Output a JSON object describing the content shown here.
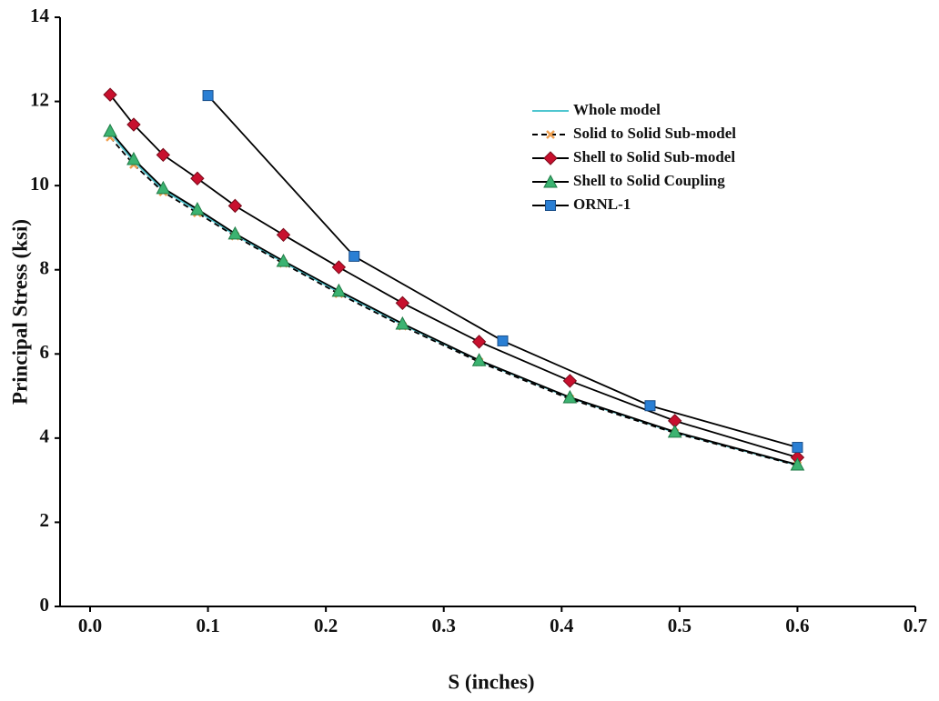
{
  "chart_data": {
    "type": "line",
    "x_label": "S (inches)",
    "y_label": "Principal Stress (ksi)",
    "xlim": [
      0,
      0.7
    ],
    "ylim": [
      0,
      14
    ],
    "xticks": [
      {
        "value": 0,
        "label": "0.0"
      },
      0.1,
      0.2,
      0.3,
      0.4,
      0.5,
      0.6,
      0.7
    ],
    "yticks": [
      0,
      2,
      4,
      6,
      8,
      10,
      12,
      14
    ],
    "legend": "upper right",
    "series": [
      {
        "name": "Whole model",
        "color": "#4fc6d0",
        "marker": "none",
        "dash": false,
        "x": [
          0.017,
          0.037,
          0.062,
          0.091,
          0.123,
          0.164,
          0.211,
          0.265,
          0.33,
          0.407,
          0.496,
          0.6
        ],
        "values": [
          11.25,
          10.58,
          9.9,
          9.4,
          8.83,
          8.18,
          7.47,
          6.7,
          5.84,
          4.96,
          4.14,
          3.36
        ]
      },
      {
        "name": "Solid to Solid Sub-model",
        "color": "#f0a050",
        "marker": "x",
        "dash": true,
        "x": [
          0.017,
          0.037,
          0.062,
          0.091,
          0.123,
          0.164,
          0.211,
          0.265,
          0.33,
          0.407,
          0.496,
          0.6
        ],
        "values": [
          11.15,
          10.5,
          9.85,
          9.35,
          8.8,
          8.15,
          7.43,
          6.66,
          5.81,
          4.93,
          4.12,
          3.35
        ]
      },
      {
        "name": "Shell to Solid Sub-model",
        "color": "#c8102e",
        "marker": "diamond",
        "dash": false,
        "x": [
          0.017,
          0.037,
          0.062,
          0.091,
          0.123,
          0.164,
          0.211,
          0.265,
          0.33,
          0.407,
          0.496,
          0.6
        ],
        "values": [
          12.16,
          11.45,
          10.73,
          10.17,
          9.52,
          8.83,
          8.06,
          7.21,
          6.29,
          5.36,
          4.41,
          3.54
        ]
      },
      {
        "name": "Shell to Solid Coupling",
        "color": "#3cb371",
        "marker": "triangle",
        "dash": false,
        "x": [
          0.017,
          0.037,
          0.062,
          0.091,
          0.123,
          0.164,
          0.211,
          0.265,
          0.33,
          0.407,
          0.496,
          0.6
        ],
        "values": [
          11.3,
          10.63,
          9.94,
          9.44,
          8.86,
          8.21,
          7.5,
          6.72,
          5.85,
          4.97,
          4.15,
          3.37
        ]
      },
      {
        "name": "ORNL-1",
        "color": "#2a7fd4",
        "marker": "square",
        "dash": false,
        "x": [
          0.1,
          0.224,
          0.35,
          0.475,
          0.6
        ],
        "values": [
          12.14,
          8.32,
          6.31,
          4.77,
          3.78
        ]
      }
    ]
  }
}
